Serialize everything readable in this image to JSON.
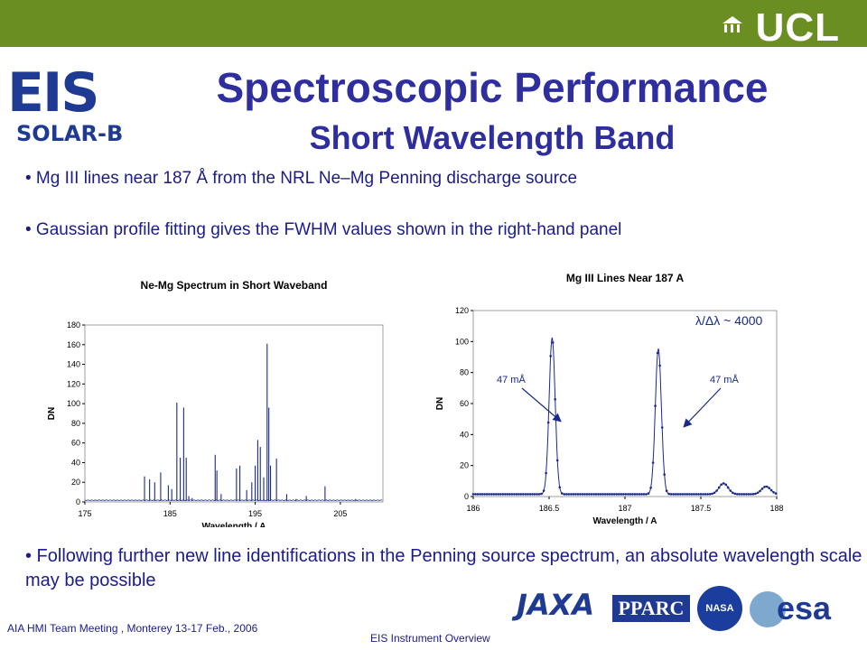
{
  "header": {
    "org": "UCL"
  },
  "logo": {
    "main": "EIS",
    "sub": "SOLAR-B"
  },
  "title": "Spectroscopic Performance",
  "subtitle": "Short Wavelength Band",
  "bullets": [
    "• Mg III lines near 187 Å from the NRL Ne–Mg Penning discharge source",
    "• Gaussian profile fitting gives the FWHM values shown in the right-hand panel",
    "• Following further new line identifications in the Penning source spectrum, an absolute wavelength scale may be possible"
  ],
  "chart_data": [
    {
      "type": "line",
      "title": "Ne-Mg Spectrum in Short Waveband",
      "xlabel": "Wavelength / A",
      "ylabel": "DN",
      "xlim": [
        175,
        210
      ],
      "ylim": [
        0,
        180
      ],
      "xticks": [
        175,
        185,
        195,
        205
      ],
      "yticks": [
        0,
        20,
        40,
        60,
        80,
        100,
        120,
        140,
        160,
        180
      ],
      "peaks": [
        [
          182.0,
          26
        ],
        [
          182.6,
          23
        ],
        [
          183.2,
          20
        ],
        [
          183.9,
          30
        ],
        [
          184.8,
          17
        ],
        [
          185.2,
          13
        ],
        [
          185.8,
          101
        ],
        [
          186.2,
          45
        ],
        [
          186.6,
          96
        ],
        [
          186.9,
          45
        ],
        [
          187.2,
          6
        ],
        [
          187.6,
          4
        ],
        [
          190.3,
          48
        ],
        [
          190.5,
          32
        ],
        [
          191.0,
          8
        ],
        [
          192.8,
          34
        ],
        [
          193.2,
          37
        ],
        [
          194.0,
          12
        ],
        [
          194.6,
          20
        ],
        [
          195.0,
          37
        ],
        [
          195.3,
          63
        ],
        [
          195.6,
          56
        ],
        [
          196.0,
          25
        ],
        [
          196.4,
          161
        ],
        [
          196.6,
          96
        ],
        [
          196.8,
          37
        ],
        [
          197.5,
          44
        ],
        [
          198.7,
          8
        ],
        [
          199.8,
          3
        ],
        [
          201.0,
          6
        ],
        [
          203.2,
          16
        ],
        [
          206.8,
          3
        ]
      ]
    },
    {
      "type": "line",
      "title": "Mg III Lines Near 187 A",
      "xlabel": "Wavelength / A",
      "ylabel": "DN",
      "xlim": [
        186,
        188
      ],
      "ylim": [
        0,
        120
      ],
      "xticks": [
        "186",
        "186.5",
        "187",
        "187.5",
        "188"
      ],
      "yticks": [
        0,
        20,
        40,
        60,
        80,
        100,
        120
      ],
      "peaks": [
        [
          186.52,
          101
        ],
        [
          187.22,
          94
        ],
        [
          187.65,
          7
        ],
        [
          187.93,
          5
        ]
      ],
      "annotations": [
        "47 mÅ",
        "47 mÅ",
        "λ/Δλ ~ 4000"
      ]
    }
  ],
  "footer": {
    "meeting": "AIA HMI Team Meeting , Monterey 13-17 Feb., 2006",
    "center": "EIS Instrument Overview",
    "logos": [
      "JAXA",
      "PPARC",
      "NASA",
      "esa"
    ]
  }
}
